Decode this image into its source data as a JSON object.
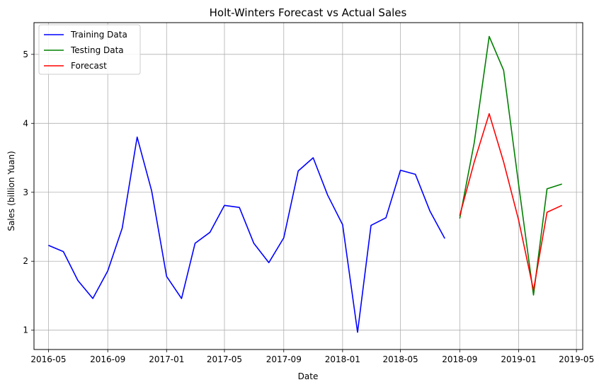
{
  "chart_data": {
    "type": "line",
    "title": "Holt-Winters Forecast vs Actual Sales",
    "xlabel": "Date",
    "ylabel": "Sales (billion Yuan)",
    "xlim": [
      "2016-04-01",
      "2019-05-14"
    ],
    "ylim": [
      0.72,
      5.46
    ],
    "x_ticks": [
      "2016-05",
      "2016-09",
      "2017-01",
      "2017-05",
      "2017-09",
      "2018-01",
      "2018-05",
      "2018-09",
      "2019-01",
      "2019-05"
    ],
    "y_ticks": [
      1,
      2,
      3,
      4,
      5
    ],
    "grid": true,
    "legend_position": "top-left",
    "series": [
      {
        "name": "Training Data",
        "color": "#0000ff",
        "x": [
          "2016-05",
          "2016-06",
          "2016-07",
          "2016-08",
          "2016-09",
          "2016-10",
          "2016-11",
          "2016-12",
          "2017-01",
          "2017-02",
          "2017-03",
          "2017-04",
          "2017-05",
          "2017-06",
          "2017-07",
          "2017-08",
          "2017-09",
          "2017-10",
          "2017-11",
          "2017-12",
          "2018-01",
          "2018-02",
          "2018-03",
          "2018-04",
          "2018-05",
          "2018-06",
          "2018-07",
          "2018-08"
        ],
        "values": [
          2.23,
          2.14,
          1.72,
          1.46,
          1.86,
          2.48,
          3.8,
          3.02,
          1.78,
          1.46,
          2.26,
          2.42,
          2.81,
          2.78,
          2.26,
          1.98,
          2.34,
          3.31,
          3.5,
          2.96,
          2.53,
          0.97,
          2.52,
          2.63,
          3.32,
          3.26,
          2.73,
          2.33
        ]
      },
      {
        "name": "Testing Data",
        "color": "#008000",
        "x": [
          "2018-09",
          "2018-10",
          "2018-11",
          "2018-12",
          "2019-01",
          "2019-02",
          "2019-03",
          "2019-04"
        ],
        "values": [
          2.62,
          3.72,
          5.26,
          4.77,
          3.12,
          1.51,
          3.05,
          3.12
        ]
      },
      {
        "name": "Forecast",
        "color": "#ff0000",
        "x": [
          "2018-09",
          "2018-10",
          "2018-11",
          "2018-12",
          "2019-01",
          "2019-02",
          "2019-03",
          "2019-04"
        ],
        "values": [
          2.66,
          3.44,
          4.14,
          3.44,
          2.6,
          1.58,
          2.71,
          2.81
        ]
      }
    ]
  }
}
